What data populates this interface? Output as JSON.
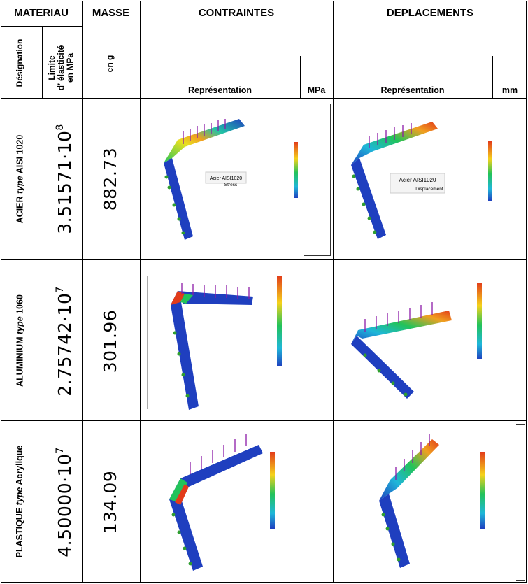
{
  "header": {
    "materiau": "MATERIAU",
    "masse": "MASSE",
    "contraintes": "CONTRAINTES",
    "deplacements": "DEPLACEMENTS",
    "designation": "Désignation",
    "limite_line1": "Limite",
    "limite_line2": "d’ élasticité",
    "limite_line3": "en MPa",
    "en_g": "en g",
    "representation_contraintes": "Représentation",
    "mpa": "MPa",
    "representation_deplacements": "Représentation",
    "mm": "mm"
  },
  "rows": [
    {
      "material_prefix": "ACIER ",
      "material_type": "type",
      "material_suffix": " AISI 1020",
      "limit_mantissa": "3.51571·10",
      "limit_exp": "8",
      "mass": "882.73",
      "stress_label_title": "Acier AISI1020",
      "stress_label_sub": "Stress",
      "disp_label_title": "Acier AISI1020",
      "disp_label_sub": "Displacement"
    },
    {
      "material_prefix": "ALUMINIUM ",
      "material_type": "type",
      "material_suffix": " 1060",
      "limit_mantissa": "2.75742·10",
      "limit_exp": "7",
      "mass": "301.96"
    },
    {
      "material_prefix": "PLASTIQUE ",
      "material_type": "type",
      "material_suffix": " Acrylique",
      "limit_mantissa": "4.50000·10",
      "limit_exp": "7",
      "mass": "134.09"
    }
  ],
  "colors": {
    "beam_low": "#1f3fbf",
    "beam_mid": "#22c35a",
    "beam_high": "#e23b1a",
    "arrow": "#8b1aa8",
    "support": "#2f9e2f"
  },
  "icons": [
    "force-arrow-icon",
    "fixture-icon",
    "color-legend-icon"
  ]
}
